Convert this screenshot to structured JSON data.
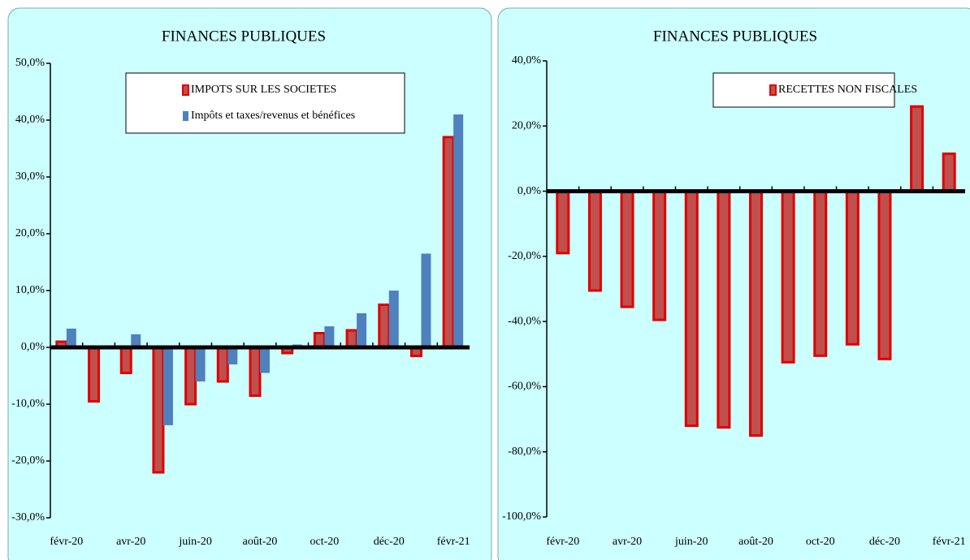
{
  "chart_data": [
    {
      "type": "bar",
      "title": "FINANCES PUBLIQUES",
      "categories": [
        "févr-20",
        null,
        "avr-20",
        null,
        "juin-20",
        null,
        "août-20",
        null,
        "oct-20",
        null,
        "déc-20",
        null,
        "févr-21"
      ],
      "series": [
        {
          "name": "IMPOTS SUR LES SOCIETES",
          "color": "#c0504d",
          "values": [
            1,
            -9.5,
            -4.5,
            -22,
            -10,
            -6,
            -8.5,
            -1,
            2.5,
            3,
            7.5,
            -1.5,
            37
          ]
        },
        {
          "name": "Impôts et taxes/revenus et bénéfices",
          "color": "#4f81bd",
          "values": [
            3.3,
            null,
            2.3,
            -13.7,
            -6,
            -3,
            -4.5,
            0.5,
            3.7,
            6,
            10,
            16.5,
            41
          ]
        }
      ],
      "ylim": [
        -30,
        50
      ],
      "yticks": [
        {
          "value": -30,
          "label": "-30,0%"
        },
        {
          "value": -20,
          "label": "-20,0%"
        },
        {
          "value": -10,
          "label": "-10,0%"
        },
        {
          "value": 0,
          "label": "0,0%"
        },
        {
          "value": 10,
          "label": "10,0%"
        },
        {
          "value": 20,
          "label": "20,0%"
        },
        {
          "value": 30,
          "label": "30,0%"
        },
        {
          "value": 40,
          "label": "40,0%"
        },
        {
          "value": 50,
          "label": "50,0%"
        }
      ]
    },
    {
      "type": "bar",
      "title": "FINANCES PUBLIQUES",
      "categories": [
        "févr-20",
        null,
        "avr-20",
        null,
        "juin-20",
        null,
        "août-20",
        null,
        "oct-20",
        null,
        "déc-20",
        null,
        "févr-21"
      ],
      "series": [
        {
          "name": "RECETTES NON FISCALES",
          "color": "#c0504d",
          "values": [
            -19,
            -30.5,
            -35.5,
            -39.5,
            -72,
            -72.5,
            -75,
            -52.5,
            -50.5,
            -47,
            -51.5,
            26,
            11.5
          ]
        }
      ],
      "ylim": [
        -100,
        40
      ],
      "yticks": [
        {
          "value": -100,
          "label": "-100,0%"
        },
        {
          "value": -80,
          "label": "-80,0%"
        },
        {
          "value": -60,
          "label": "-60,0%"
        },
        {
          "value": -40,
          "label": "-40,0%"
        },
        {
          "value": -20,
          "label": "-20,0%"
        },
        {
          "value": 0,
          "label": "0,0%"
        },
        {
          "value": 20,
          "label": "20,0%"
        },
        {
          "value": 40,
          "label": "40,0%"
        }
      ]
    }
  ]
}
